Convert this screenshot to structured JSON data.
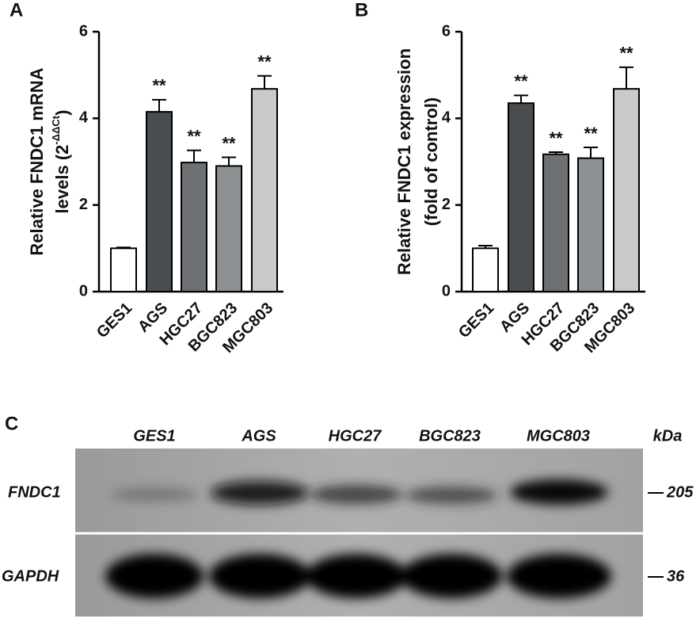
{
  "chart_data": [
    {
      "type": "bar",
      "panel_label": "A",
      "ylabel": "Relative FNDC1 mRNA",
      "ylabel2": {
        "text": "levels (2",
        "superscript": "-ΔΔCt",
        "suffix": ")"
      },
      "categories": [
        "GES1",
        "AGS",
        "HGC27",
        "BGC823",
        "MGC803"
      ],
      "values": [
        1.0,
        4.15,
        2.98,
        2.9,
        4.68
      ],
      "errors": [
        0.02,
        0.28,
        0.28,
        0.2,
        0.3
      ],
      "value_annotations": [
        null,
        "**",
        "**",
        "**",
        "**"
      ],
      "colors": [
        "#ffffff",
        "#4a4d4f",
        "#6e7173",
        "#8e9193",
        "#c8cacb"
      ],
      "ylim": [
        0,
        6
      ],
      "yticks": [
        0,
        2,
        4,
        6
      ]
    },
    {
      "type": "bar",
      "panel_label": "B",
      "ylabel": "Relative FNDC1 expression",
      "ylabel2": {
        "text": "(fold of control)"
      },
      "categories": [
        "GES1",
        "AGS",
        "HGC27",
        "BGC823",
        "MGC803"
      ],
      "values": [
        1.0,
        4.35,
        3.17,
        3.08,
        4.68
      ],
      "errors": [
        0.06,
        0.18,
        0.05,
        0.25,
        0.5
      ],
      "value_annotations": [
        null,
        "**",
        "**",
        "**",
        "**"
      ],
      "colors": [
        "#ffffff",
        "#4a4d4f",
        "#6e7173",
        "#8e9193",
        "#c8cacb"
      ],
      "ylim": [
        0,
        6
      ],
      "yticks": [
        0,
        2,
        4,
        6
      ]
    }
  ],
  "blot": {
    "panel_label": "C",
    "lanes": [
      "GES1",
      "AGS",
      "HGC27",
      "BGC823",
      "MGC803"
    ],
    "unit": "kDa",
    "rows": [
      {
        "name": "FNDC1",
        "marker": 205
      },
      {
        "name": "GAPDH",
        "marker": 36
      }
    ]
  }
}
